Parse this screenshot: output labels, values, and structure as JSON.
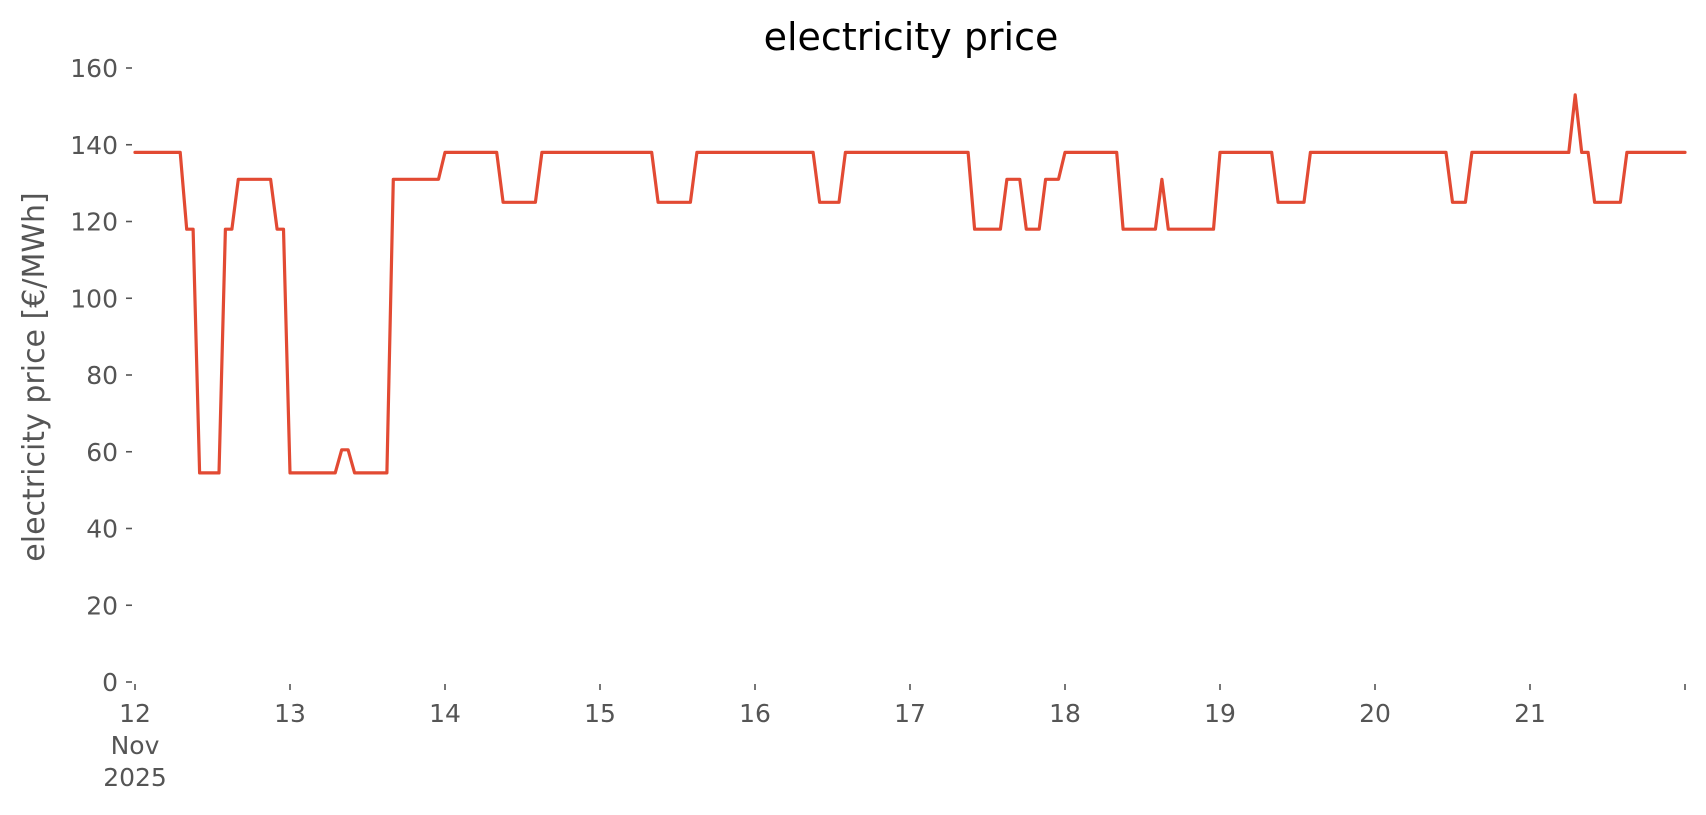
{
  "chart_data": {
    "type": "line",
    "title": "electricity price",
    "xlabel": "",
    "ylabel": "electricity price [€/MWh]",
    "ylim": [
      0,
      160
    ],
    "xlim": [
      "2025-11-12",
      "2025-11-22"
    ],
    "grid": false,
    "line_color": "#E24A33",
    "y_ticks": [
      {
        "value": 0,
        "label": "0"
      },
      {
        "value": 20,
        "label": "20"
      },
      {
        "value": 40,
        "label": "40"
      },
      {
        "value": 60,
        "label": "60"
      },
      {
        "value": 80,
        "label": "80"
      },
      {
        "value": 100,
        "label": "100"
      },
      {
        "value": 120,
        "label": "120"
      },
      {
        "value": 140,
        "label": "140"
      },
      {
        "value": 160,
        "label": "160"
      }
    ],
    "x_ticks": [
      {
        "value": "2025-11-12",
        "label": "12",
        "sublabel": "Nov",
        "sublabel2": "2025"
      },
      {
        "value": "2025-11-13",
        "label": "13"
      },
      {
        "value": "2025-11-14",
        "label": "14"
      },
      {
        "value": "2025-11-15",
        "label": "15"
      },
      {
        "value": "2025-11-16",
        "label": "16"
      },
      {
        "value": "2025-11-17",
        "label": "17"
      },
      {
        "value": "2025-11-18",
        "label": "18"
      },
      {
        "value": "2025-11-19",
        "label": "19"
      },
      {
        "value": "2025-11-20",
        "label": "20"
      },
      {
        "value": "2025-11-21",
        "label": "21"
      },
      {
        "value": "2025-11-22",
        "label": ""
      }
    ],
    "series": [
      {
        "x": [
          "2025-11-12 00:00",
          "2025-11-12 07:00",
          "2025-11-12 08:00",
          "2025-11-12 09:00",
          "2025-11-12 10:00",
          "2025-11-12 13:00",
          "2025-11-12 14:00",
          "2025-11-12 15:00",
          "2025-11-12 16:00",
          "2025-11-12 21:00",
          "2025-11-12 22:00",
          "2025-11-12 23:00",
          "2025-11-13 00:00",
          "2025-11-13 07:00",
          "2025-11-13 08:00",
          "2025-11-13 09:00",
          "2025-11-13 10:00",
          "2025-11-13 15:00",
          "2025-11-13 16:00",
          "2025-11-13 23:00",
          "2025-11-14 00:00",
          "2025-11-14 08:00",
          "2025-11-14 09:00",
          "2025-11-14 14:00",
          "2025-11-14 15:00",
          "2025-11-15 08:00",
          "2025-11-15 09:00",
          "2025-11-15 14:00",
          "2025-11-15 15:00",
          "2025-11-16 09:00",
          "2025-11-16 10:00",
          "2025-11-16 13:00",
          "2025-11-16 14:00",
          "2025-11-17 09:00",
          "2025-11-17 10:00",
          "2025-11-17 14:00",
          "2025-11-17 15:00",
          "2025-11-17 17:00",
          "2025-11-17 18:00",
          "2025-11-17 20:00",
          "2025-11-17 21:00",
          "2025-11-17 23:00",
          "2025-11-18 00:00",
          "2025-11-18 08:00",
          "2025-11-18 09:00",
          "2025-11-18 14:00",
          "2025-11-18 15:00",
          "2025-11-18 16:00",
          "2025-11-18 23:00",
          "2025-11-19 00:00",
          "2025-11-19 08:00",
          "2025-11-19 09:00",
          "2025-11-19 13:00",
          "2025-11-19 14:00",
          "2025-11-20 11:00",
          "2025-11-20 12:00",
          "2025-11-20 14:00",
          "2025-11-20 15:00",
          "2025-11-21 06:00",
          "2025-11-21 07:00",
          "2025-11-21 08:00",
          "2025-11-21 09:00",
          "2025-11-21 10:00",
          "2025-11-21 14:00",
          "2025-11-21 15:00",
          "2025-11-22 00:00"
        ],
        "values": [
          138,
          138,
          118,
          118,
          54.5,
          54.5,
          118,
          118,
          131,
          131,
          118,
          118,
          54.5,
          54.5,
          60.5,
          60.5,
          54.5,
          54.5,
          131,
          131,
          138,
          138,
          125,
          125,
          138,
          138,
          125,
          125,
          138,
          138,
          125,
          125,
          138,
          138,
          118,
          118,
          131,
          131,
          118,
          118,
          131,
          131,
          138,
          138,
          118,
          118,
          131,
          118,
          118,
          138,
          138,
          125,
          125,
          138,
          138,
          125,
          125,
          138,
          138,
          153,
          138,
          138,
          125,
          125,
          138,
          138
        ]
      }
    ]
  }
}
